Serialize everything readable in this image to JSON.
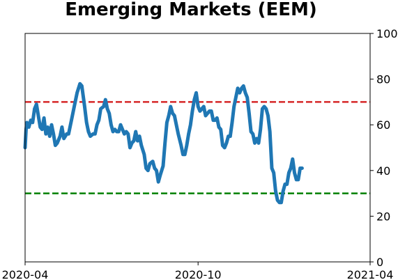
{
  "chart_data": {
    "type": "line",
    "title": "Emerging Markets (EEM)",
    "xlabel": "",
    "ylabel": "",
    "x_range": [
      "2020-04-01",
      "2021-04-01"
    ],
    "x_ticks": [
      {
        "date": "2020-04-01",
        "label": "2020-04"
      },
      {
        "date": "2020-10-01",
        "label": "2020-10"
      },
      {
        "date": "2021-04-01",
        "label": "2021-04"
      }
    ],
    "ylim": [
      0,
      100
    ],
    "y_ticks": [
      0,
      20,
      40,
      60,
      80,
      100
    ],
    "y_axis_side": "right",
    "grid": false,
    "reference_lines": [
      {
        "y": 70,
        "color": "#d62728",
        "style": "dashed"
      },
      {
        "y": 30,
        "color": "#008000",
        "style": "dashed"
      }
    ],
    "series": [
      {
        "color": "#1f77b4",
        "points": [
          [
            "2020-04-01",
            50
          ],
          [
            "2020-04-02",
            58
          ],
          [
            "2020-04-03",
            61
          ],
          [
            "2020-04-05",
            59
          ],
          [
            "2020-04-07",
            62
          ],
          [
            "2020-04-09",
            61
          ],
          [
            "2020-04-11",
            67
          ],
          [
            "2020-04-13",
            69
          ],
          [
            "2020-04-15",
            64
          ],
          [
            "2020-04-17",
            59
          ],
          [
            "2020-04-19",
            58
          ],
          [
            "2020-04-21",
            63
          ],
          [
            "2020-04-23",
            56
          ],
          [
            "2020-04-25",
            59
          ],
          [
            "2020-04-27",
            55
          ],
          [
            "2020-04-29",
            60
          ],
          [
            "2020-05-01",
            56
          ],
          [
            "2020-05-03",
            51
          ],
          [
            "2020-05-05",
            52
          ],
          [
            "2020-05-08",
            55
          ],
          [
            "2020-05-10",
            59
          ],
          [
            "2020-05-12",
            54
          ],
          [
            "2020-05-15",
            56
          ],
          [
            "2020-05-17",
            56
          ],
          [
            "2020-05-20",
            62
          ],
          [
            "2020-05-23",
            68
          ],
          [
            "2020-05-26",
            74
          ],
          [
            "2020-05-29",
            78
          ],
          [
            "2020-05-31",
            77
          ],
          [
            "2020-06-03",
            68
          ],
          [
            "2020-06-05",
            61
          ],
          [
            "2020-06-07",
            57
          ],
          [
            "2020-06-09",
            55
          ],
          [
            "2020-06-12",
            56
          ],
          [
            "2020-06-14",
            56
          ],
          [
            "2020-06-16",
            60
          ],
          [
            "2020-06-18",
            62
          ],
          [
            "2020-06-20",
            67
          ],
          [
            "2020-06-23",
            68
          ],
          [
            "2020-06-25",
            71
          ],
          [
            "2020-06-27",
            67
          ],
          [
            "2020-06-29",
            65
          ],
          [
            "2020-07-01",
            60
          ],
          [
            "2020-07-03",
            57
          ],
          [
            "2020-07-05",
            58
          ],
          [
            "2020-07-07",
            57
          ],
          [
            "2020-07-09",
            57
          ],
          [
            "2020-07-11",
            60
          ],
          [
            "2020-07-13",
            58
          ],
          [
            "2020-07-15",
            56
          ],
          [
            "2020-07-17",
            57
          ],
          [
            "2020-07-19",
            56
          ],
          [
            "2020-07-21",
            50
          ],
          [
            "2020-07-23",
            52
          ],
          [
            "2020-07-25",
            53
          ],
          [
            "2020-07-27",
            57
          ],
          [
            "2020-07-29",
            53
          ],
          [
            "2020-07-31",
            55
          ],
          [
            "2020-08-02",
            51
          ],
          [
            "2020-08-05",
            47
          ],
          [
            "2020-08-07",
            41
          ],
          [
            "2020-08-09",
            40
          ],
          [
            "2020-08-11",
            43
          ],
          [
            "2020-08-14",
            44
          ],
          [
            "2020-08-16",
            41
          ],
          [
            "2020-08-18",
            40
          ],
          [
            "2020-08-20",
            35
          ],
          [
            "2020-08-22",
            38
          ],
          [
            "2020-08-25",
            42
          ],
          [
            "2020-08-27",
            52
          ],
          [
            "2020-08-29",
            61
          ],
          [
            "2020-08-31",
            64
          ],
          [
            "2020-09-02",
            68
          ],
          [
            "2020-09-04",
            65
          ],
          [
            "2020-09-06",
            64
          ],
          [
            "2020-09-08",
            60
          ],
          [
            "2020-09-10",
            56
          ],
          [
            "2020-09-13",
            51
          ],
          [
            "2020-09-15",
            47
          ],
          [
            "2020-09-17",
            47
          ],
          [
            "2020-09-19",
            51
          ],
          [
            "2020-09-21",
            56
          ],
          [
            "2020-09-23",
            60
          ],
          [
            "2020-09-25",
            66
          ],
          [
            "2020-09-27",
            71
          ],
          [
            "2020-09-29",
            74
          ],
          [
            "2020-10-01",
            68
          ],
          [
            "2020-10-03",
            66
          ],
          [
            "2020-10-05",
            67
          ],
          [
            "2020-10-07",
            68
          ],
          [
            "2020-10-09",
            64
          ],
          [
            "2020-10-11",
            65
          ],
          [
            "2020-10-13",
            66
          ],
          [
            "2020-10-15",
            66
          ],
          [
            "2020-10-17",
            62
          ],
          [
            "2020-10-19",
            62
          ],
          [
            "2020-10-21",
            63
          ],
          [
            "2020-10-23",
            59
          ],
          [
            "2020-10-25",
            58
          ],
          [
            "2020-10-27",
            51
          ],
          [
            "2020-10-29",
            50
          ],
          [
            "2020-10-31",
            52
          ],
          [
            "2020-11-02",
            55
          ],
          [
            "2020-11-04",
            55
          ],
          [
            "2020-11-06",
            61
          ],
          [
            "2020-11-08",
            68
          ],
          [
            "2020-11-10",
            72
          ],
          [
            "2020-11-12",
            76
          ],
          [
            "2020-11-14",
            74
          ],
          [
            "2020-11-16",
            76
          ],
          [
            "2020-11-18",
            77
          ],
          [
            "2020-11-20",
            74
          ],
          [
            "2020-11-22",
            72
          ],
          [
            "2020-11-24",
            65
          ],
          [
            "2020-11-26",
            57
          ],
          [
            "2020-11-28",
            56
          ],
          [
            "2020-11-30",
            52
          ],
          [
            "2020-12-02",
            54
          ],
          [
            "2020-12-04",
            52
          ],
          [
            "2020-12-06",
            58
          ],
          [
            "2020-12-08",
            67
          ],
          [
            "2020-12-10",
            68
          ],
          [
            "2020-12-12",
            67
          ],
          [
            "2020-12-14",
            64
          ],
          [
            "2020-12-16",
            57
          ],
          [
            "2020-12-18",
            41
          ],
          [
            "2020-12-20",
            39
          ],
          [
            "2020-12-22",
            31
          ],
          [
            "2020-12-24",
            27
          ],
          [
            "2020-12-26",
            26
          ],
          [
            "2020-12-28",
            26
          ],
          [
            "2020-12-30",
            31
          ],
          [
            "2021-01-01",
            34
          ],
          [
            "2021-01-03",
            34
          ],
          [
            "2021-01-05",
            39
          ],
          [
            "2021-01-07",
            41
          ],
          [
            "2021-01-09",
            45
          ],
          [
            "2021-01-11",
            39
          ],
          [
            "2021-01-13",
            36
          ],
          [
            "2021-01-15",
            36
          ],
          [
            "2021-01-17",
            41
          ],
          [
            "2021-01-19",
            41
          ]
        ]
      }
    ]
  }
}
